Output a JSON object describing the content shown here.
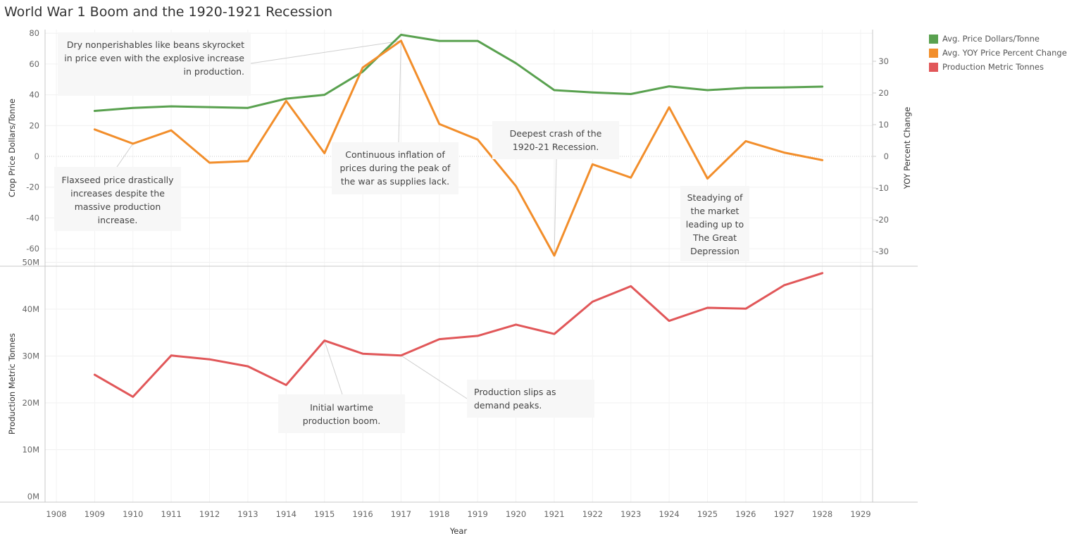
{
  "title": "World War 1 Boom and the 1920-1921 Recession",
  "legend": {
    "items": [
      {
        "label": "Avg. Price Dollars/Tonne",
        "color": "#59a14f"
      },
      {
        "label": "Avg. YOY Price Percent Change",
        "color": "#f28e2b"
      },
      {
        "label": "Production Metric Tonnes",
        "color": "#e15759"
      }
    ]
  },
  "annotations": {
    "beans": "Dry nonperishables like beans skyrocket in price even with the explosive increase in production.",
    "flaxseed": "Flaxseed price drastically increases despite the massive production increase.",
    "inflation": "Continuous inflation of prices during the peak of the war as supplies lack.",
    "crash": "Deepest crash of the 1920-21 Recession.",
    "steadying": "Steadying of the market leading up to The Great Depression",
    "boom": "Initial wartime production boom.",
    "slips": "Production slips as demand peaks."
  },
  "chart_data": {
    "type": "line",
    "title": "World War 1 Boom and the 1920-1921 Recession",
    "xlabel": "Year",
    "x_ticks": [
      1908,
      1909,
      1910,
      1911,
      1912,
      1913,
      1914,
      1915,
      1916,
      1917,
      1918,
      1919,
      1920,
      1921,
      1922,
      1923,
      1924,
      1925,
      1926,
      1927,
      1928,
      1929
    ],
    "xlim": [
      1908,
      1929
    ],
    "x": [
      1909,
      1910,
      1911,
      1912,
      1913,
      1914,
      1915,
      1916,
      1917,
      1918,
      1919,
      1920,
      1921,
      1922,
      1923,
      1924,
      1925,
      1926,
      1927,
      1928
    ],
    "top_panel": {
      "ylabel_left": "Crop Price Dollars/Tonne",
      "ylabel_right": "YOY Percent Change",
      "ylim_left": [
        -70,
        80
      ],
      "yticks_left": [
        80,
        60,
        40,
        20,
        0,
        -20,
        -40,
        -60
      ],
      "ylim_right": [
        -35,
        37.5
      ],
      "yticks_right": [
        30,
        20,
        10,
        0,
        -10,
        -20,
        -30
      ],
      "series": [
        {
          "name": "Avg. Price Dollars/Tonne",
          "axis": "left",
          "color": "#59a14f",
          "values": [
            29.5,
            31.5,
            32.5,
            32,
            31.5,
            37.5,
            40,
            55,
            79,
            75,
            75,
            60.5,
            43,
            41.5,
            40.5,
            45.5,
            43,
            44.5,
            44.8,
            45.3
          ]
        },
        {
          "name": "Avg. YOY Price Percent Change",
          "axis": "right",
          "color": "#f28e2b",
          "values": [
            8.5,
            4,
            8.2,
            -2,
            -1.5,
            17.5,
            1,
            28,
            36.5,
            10.2,
            5.3,
            -9.4,
            -31.3,
            -2.5,
            -6.7,
            15.5,
            -7,
            4.8,
            1.2,
            -1.2
          ]
        }
      ]
    },
    "bottom_panel": {
      "ylabel": "Production Metric Tonnes",
      "ylim": [
        0,
        50
      ],
      "yticks": [
        0,
        10,
        20,
        30,
        40,
        50
      ],
      "ytick_labels": [
        "0M",
        "10M",
        "20M",
        "30M",
        "40M",
        "50M"
      ],
      "series": [
        {
          "name": "Production Metric Tonnes",
          "color": "#e15759",
          "unit": "M",
          "values": [
            26,
            21.3,
            30.1,
            29.3,
            27.8,
            23.8,
            33.3,
            30.5,
            30.1,
            33.6,
            34.3,
            36.7,
            34.7,
            41.6,
            44.9,
            37.5,
            40.3,
            40.1,
            45.1,
            47.7
          ]
        }
      ]
    }
  }
}
